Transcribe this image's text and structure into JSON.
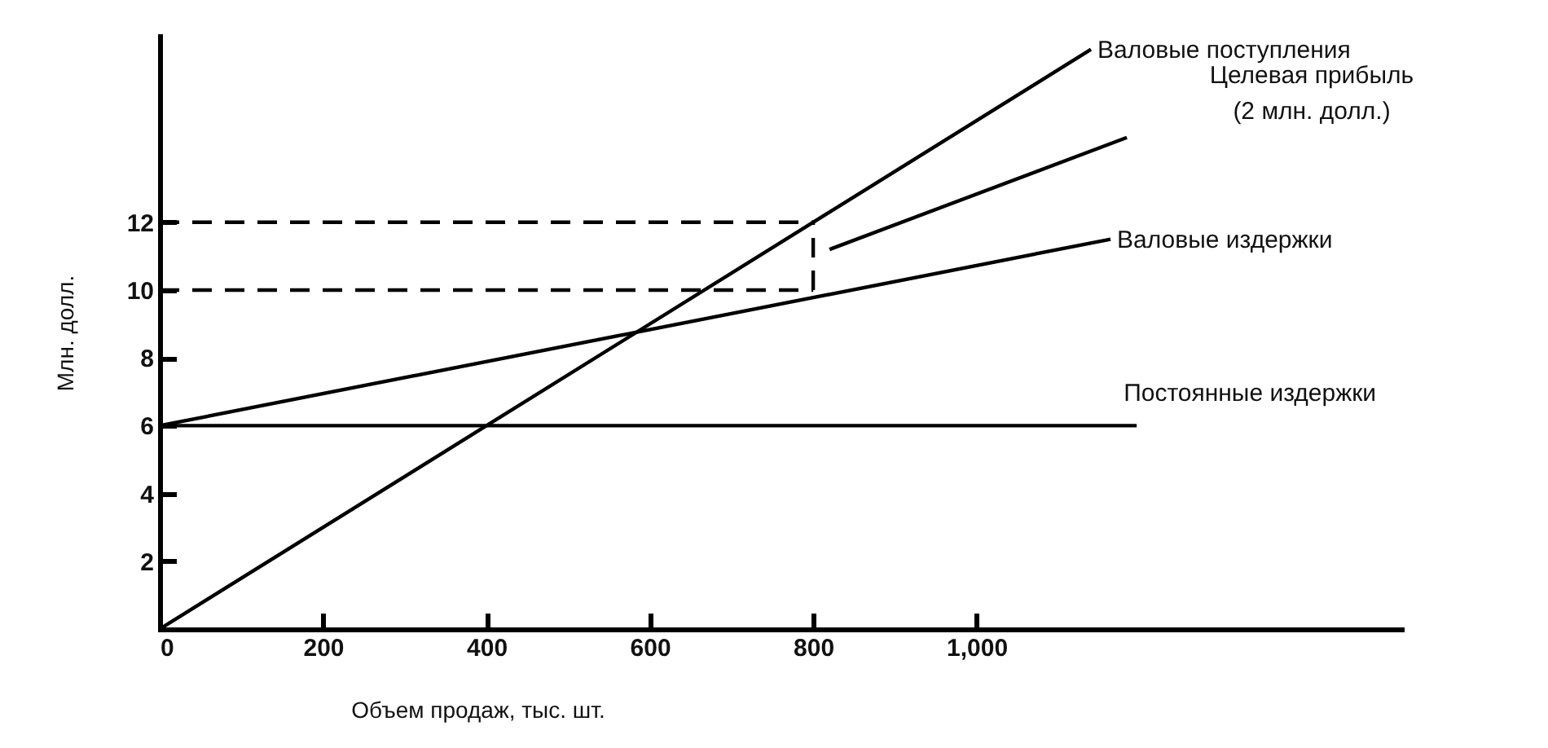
{
  "chart_data": {
    "type": "line",
    "xlabel": "Объем продаж, тыс. шт.",
    "ylabel": "Млн. долл.",
    "xlim": [
      0,
      1520
    ],
    "ylim": [
      0,
      17.5
    ],
    "xticks": [
      0,
      200,
      400,
      600,
      800,
      {
        "value": 1000,
        "label": "1,000"
      }
    ],
    "yticks": [
      2,
      4,
      6,
      8,
      10,
      12
    ],
    "grid": false,
    "line_style": "solid",
    "series": [
      {
        "name": "Валовые поступления",
        "color": "#000000",
        "x": [
          0,
          1140
        ],
        "values": [
          0,
          17.1
        ]
      },
      {
        "name": "Валовые издержки",
        "color": "#000000",
        "x": [
          0,
          1164
        ],
        "values": [
          6,
          11.5
        ]
      },
      {
        "name": "Постоянные издержки",
        "color": "#000000",
        "x": [
          0,
          1196
        ],
        "values": [
          6,
          6
        ]
      },
      {
        "color": "#000000",
        "x": [
          0,
          800
        ],
        "values": [
          12,
          12
        ],
        "line_style": "dashed"
      },
      {
        "color": "#000000",
        "x": [
          0,
          800
        ],
        "values": [
          10,
          10
        ],
        "line_style": "dashed"
      },
      {
        "color": "#000000",
        "x": [
          800,
          800
        ],
        "values": [
          10,
          12
        ],
        "line_style": "dashed"
      },
      {
        "color": "#000000",
        "x": [
          820,
          1184
        ],
        "values": [
          11.2,
          14.5
        ]
      }
    ],
    "annotations": [
      "Целевая прибыль\n(2 млн. долл.)"
    ]
  }
}
